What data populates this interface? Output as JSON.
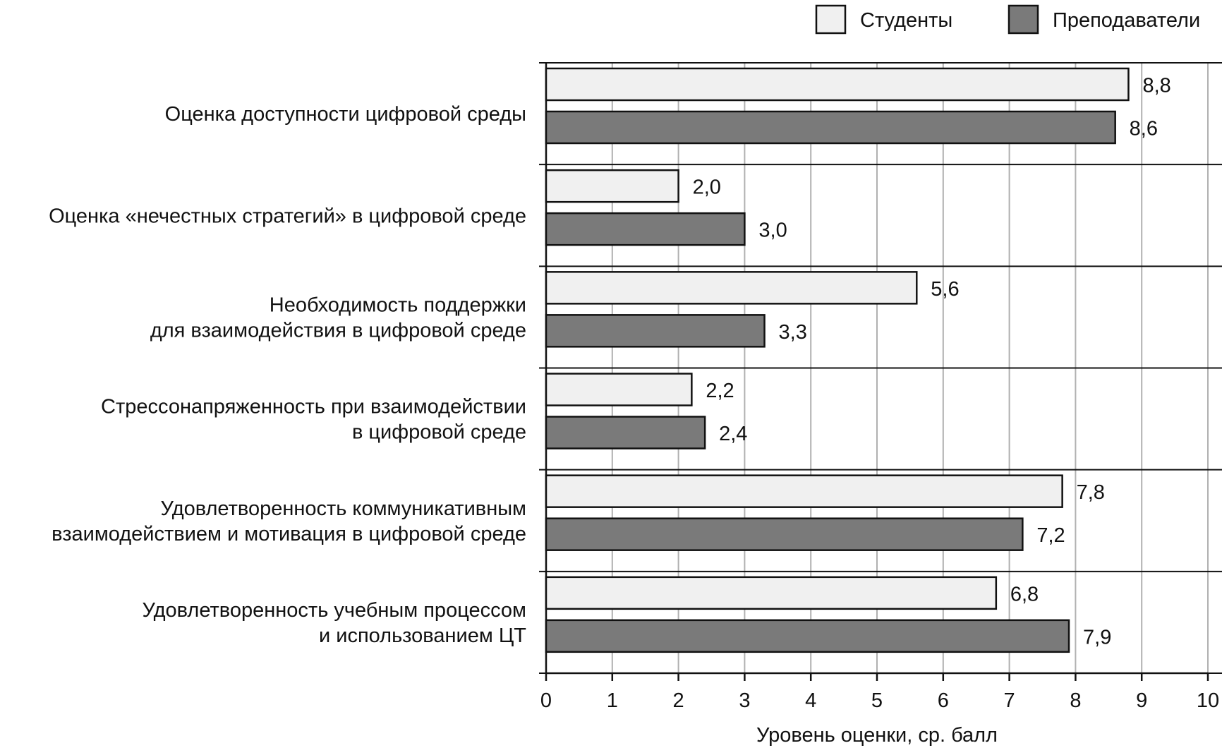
{
  "chart_data": {
    "type": "bar",
    "orientation": "horizontal",
    "title": "",
    "xlabel": "Уровень оценки, ср. балл",
    "ylabel": "",
    "xlim": [
      0,
      10
    ],
    "xticks": [
      "0",
      "1",
      "2",
      "3",
      "4",
      "5",
      "6",
      "7",
      "8",
      "9",
      "10"
    ],
    "grid": true,
    "legend_position": "top-right",
    "categories": [
      [
        "Оценка доступности цифровой среды"
      ],
      [
        "Оценка «нечестных стратегий» в цифровой среде"
      ],
      [
        "Необходимость поддержки",
        "для взаимодействия в цифровой среде"
      ],
      [
        "Стрессонапряженность при взаимодействии",
        "в цифровой среде"
      ],
      [
        "Удовлетворенность коммуникативным",
        "взаимодействием и мотивация в цифровой среде"
      ],
      [
        "Удовлетворенность учебным процессом",
        "и использованием ЦТ"
      ]
    ],
    "series": [
      {
        "name": "Студенты",
        "color": "#f0f0f0",
        "values": [
          8.8,
          2.0,
          5.6,
          2.2,
          7.8,
          6.8
        ],
        "labels": [
          "8,8",
          "2,0",
          "5,6",
          "2,2",
          "7,8",
          "6,8"
        ]
      },
      {
        "name": "Преподаватели",
        "color": "#7a7a7a",
        "values": [
          8.6,
          3.0,
          3.3,
          2.4,
          7.2,
          7.9
        ],
        "labels": [
          "8,6",
          "3,0",
          "3,3",
          "2,4",
          "7,2",
          "7,9"
        ]
      }
    ]
  }
}
